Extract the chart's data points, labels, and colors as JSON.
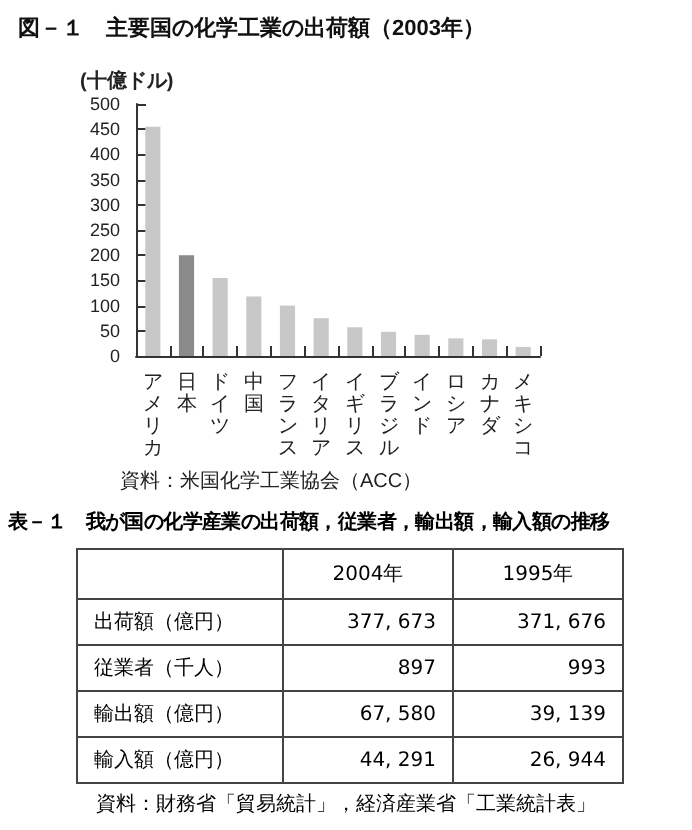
{
  "chart_data": [
    {
      "type": "bar",
      "title": "図－１　主要国の化学工業の出荷額（2003年）",
      "ylabel": "(十億ドル)",
      "categories": [
        "アメリカ",
        "日本",
        "ドイツ",
        "中国",
        "フランス",
        "イタリア",
        "イギリス",
        "ブラジル",
        "インド",
        "ロシア",
        "カナダ",
        "メキシコ"
      ],
      "values": [
        455,
        200,
        155,
        118,
        100,
        75,
        57,
        48,
        42,
        35,
        33,
        18
      ],
      "colors": [
        "#c8c8c8",
        "#8a8a8a",
        "#c8c8c8",
        "#c8c8c8",
        "#c8c8c8",
        "#c8c8c8",
        "#c8c8c8",
        "#c8c8c8",
        "#c8c8c8",
        "#c8c8c8",
        "#c8c8c8",
        "#c8c8c8"
      ],
      "ylim": [
        0,
        500
      ],
      "yticks": [
        0,
        50,
        100,
        150,
        200,
        250,
        300,
        350,
        400,
        450,
        500
      ],
      "grid": false,
      "annotations": [
        "資料：米国化学工業協会（ACC）"
      ]
    },
    {
      "type": "other",
      "title": "表－１　我が国の化学産業の出荷額，従業者，輸出額，輸入額の推移",
      "categories": [
        "2004年",
        "1995年"
      ],
      "y_categories": [
        "出荷額（億円）",
        "従業者（千人）",
        "輸出額（億円）",
        "輸入額（億円）"
      ],
      "cell_labels": [
        [
          "377, 673",
          "371, 676"
        ],
        [
          "897",
          "993"
        ],
        [
          "67, 580",
          "39, 139"
        ],
        [
          "44, 291",
          "26, 944"
        ]
      ],
      "annotations": [
        "資料：財務省「貿易統計」，経済産業省「工業統計表」"
      ]
    }
  ]
}
